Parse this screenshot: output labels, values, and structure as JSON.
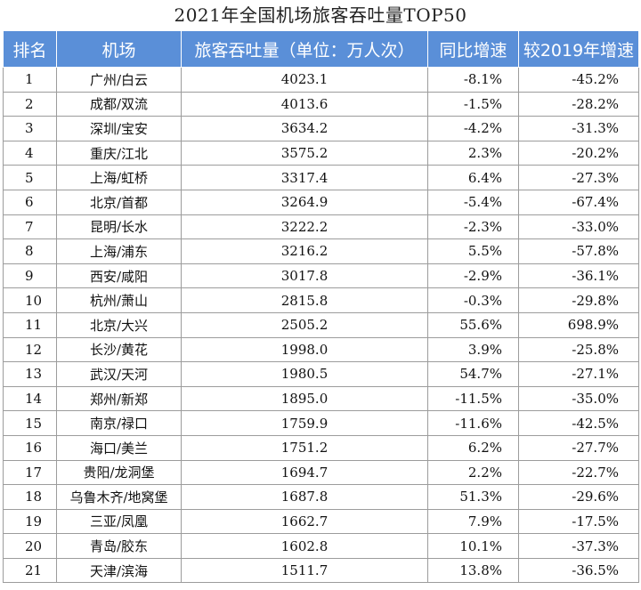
{
  "title": "2021年全国机场旅客吞吐量TOP50",
  "columns": {
    "rank": "排名",
    "airport": "机场",
    "volume": "旅客吞吐量（单位：万人次）",
    "yoy": "同比增速",
    "vs2019": "较2019年增速"
  },
  "rows": [
    {
      "rank": "1",
      "airport": "广州/白云",
      "volume": "4023.1",
      "yoy": "-8.1%",
      "vs2019": "-45.2%"
    },
    {
      "rank": "2",
      "airport": "成都/双流",
      "volume": "4013.6",
      "yoy": "-1.5%",
      "vs2019": "-28.2%"
    },
    {
      "rank": "3",
      "airport": "深圳/宝安",
      "volume": "3634.2",
      "yoy": "-4.2%",
      "vs2019": "-31.3%"
    },
    {
      "rank": "4",
      "airport": "重庆/江北",
      "volume": "3575.2",
      "yoy": "2.3%",
      "vs2019": "-20.2%"
    },
    {
      "rank": "5",
      "airport": "上海/虹桥",
      "volume": "3317.4",
      "yoy": "6.4%",
      "vs2019": "-27.3%"
    },
    {
      "rank": "6",
      "airport": "北京/首都",
      "volume": "3264.9",
      "yoy": "-5.4%",
      "vs2019": "-67.4%"
    },
    {
      "rank": "7",
      "airport": "昆明/长水",
      "volume": "3222.2",
      "yoy": "-2.3%",
      "vs2019": "-33.0%"
    },
    {
      "rank": "8",
      "airport": "上海/浦东",
      "volume": "3216.2",
      "yoy": "5.5%",
      "vs2019": "-57.8%"
    },
    {
      "rank": "9",
      "airport": "西安/咸阳",
      "volume": "3017.8",
      "yoy": "-2.9%",
      "vs2019": "-36.1%"
    },
    {
      "rank": "10",
      "airport": "杭州/萧山",
      "volume": "2815.8",
      "yoy": "-0.3%",
      "vs2019": "-29.8%"
    },
    {
      "rank": "11",
      "airport": "北京/大兴",
      "volume": "2505.2",
      "yoy": "55.6%",
      "vs2019": "698.9%"
    },
    {
      "rank": "12",
      "airport": "长沙/黄花",
      "volume": "1998.0",
      "yoy": "3.9%",
      "vs2019": "-25.8%"
    },
    {
      "rank": "13",
      "airport": "武汉/天河",
      "volume": "1980.5",
      "yoy": "54.7%",
      "vs2019": "-27.1%"
    },
    {
      "rank": "14",
      "airport": "郑州/新郑",
      "volume": "1895.0",
      "yoy": "-11.5%",
      "vs2019": "-35.0%"
    },
    {
      "rank": "15",
      "airport": "南京/禄口",
      "volume": "1759.9",
      "yoy": "-11.6%",
      "vs2019": "-42.5%"
    },
    {
      "rank": "16",
      "airport": "海口/美兰",
      "volume": "1751.2",
      "yoy": "6.2%",
      "vs2019": "-27.7%"
    },
    {
      "rank": "17",
      "airport": "贵阳/龙洞堡",
      "volume": "1694.7",
      "yoy": "2.2%",
      "vs2019": "-22.7%"
    },
    {
      "rank": "18",
      "airport": "乌鲁木齐/地窝堡",
      "volume": "1687.8",
      "yoy": "51.3%",
      "vs2019": "-29.6%"
    },
    {
      "rank": "19",
      "airport": "三亚/凤凰",
      "volume": "1662.7",
      "yoy": "7.9%",
      "vs2019": "-17.5%"
    },
    {
      "rank": "20",
      "airport": "青岛/胶东",
      "volume": "1602.8",
      "yoy": "10.1%",
      "vs2019": "-37.3%"
    },
    {
      "rank": "21",
      "airport": "天津/滨海",
      "volume": "1511.7",
      "yoy": "13.8%",
      "vs2019": "-36.5%"
    }
  ]
}
